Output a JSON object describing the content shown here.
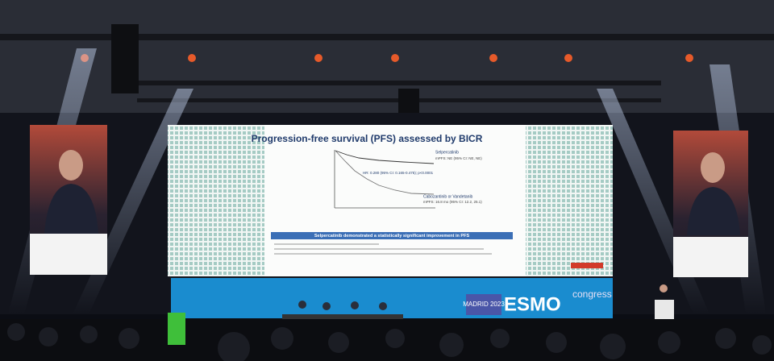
{
  "slide": {
    "title": "Progression-free survival (PFS) assessed by BICR",
    "legend": [
      {
        "name": "Selpercatinib",
        "stat": "mPFS: NE (95% CI: NE, NE)"
      },
      {
        "name": "Cabozantinib or Vandetanib",
        "stat": "mPFS: 16.8 mo (95% CI: 12.2, 25.1)"
      }
    ],
    "hazard_ratio": "HR: 0.280 (95% CI: 0.165-0.475); p<0.0001",
    "conclusion": "Selpercatinib demonstrated a statistically significant improvement in PFS"
  },
  "stage": {
    "event": "MADRID 2023",
    "brand": "ESMO",
    "suffix": "congress"
  }
}
